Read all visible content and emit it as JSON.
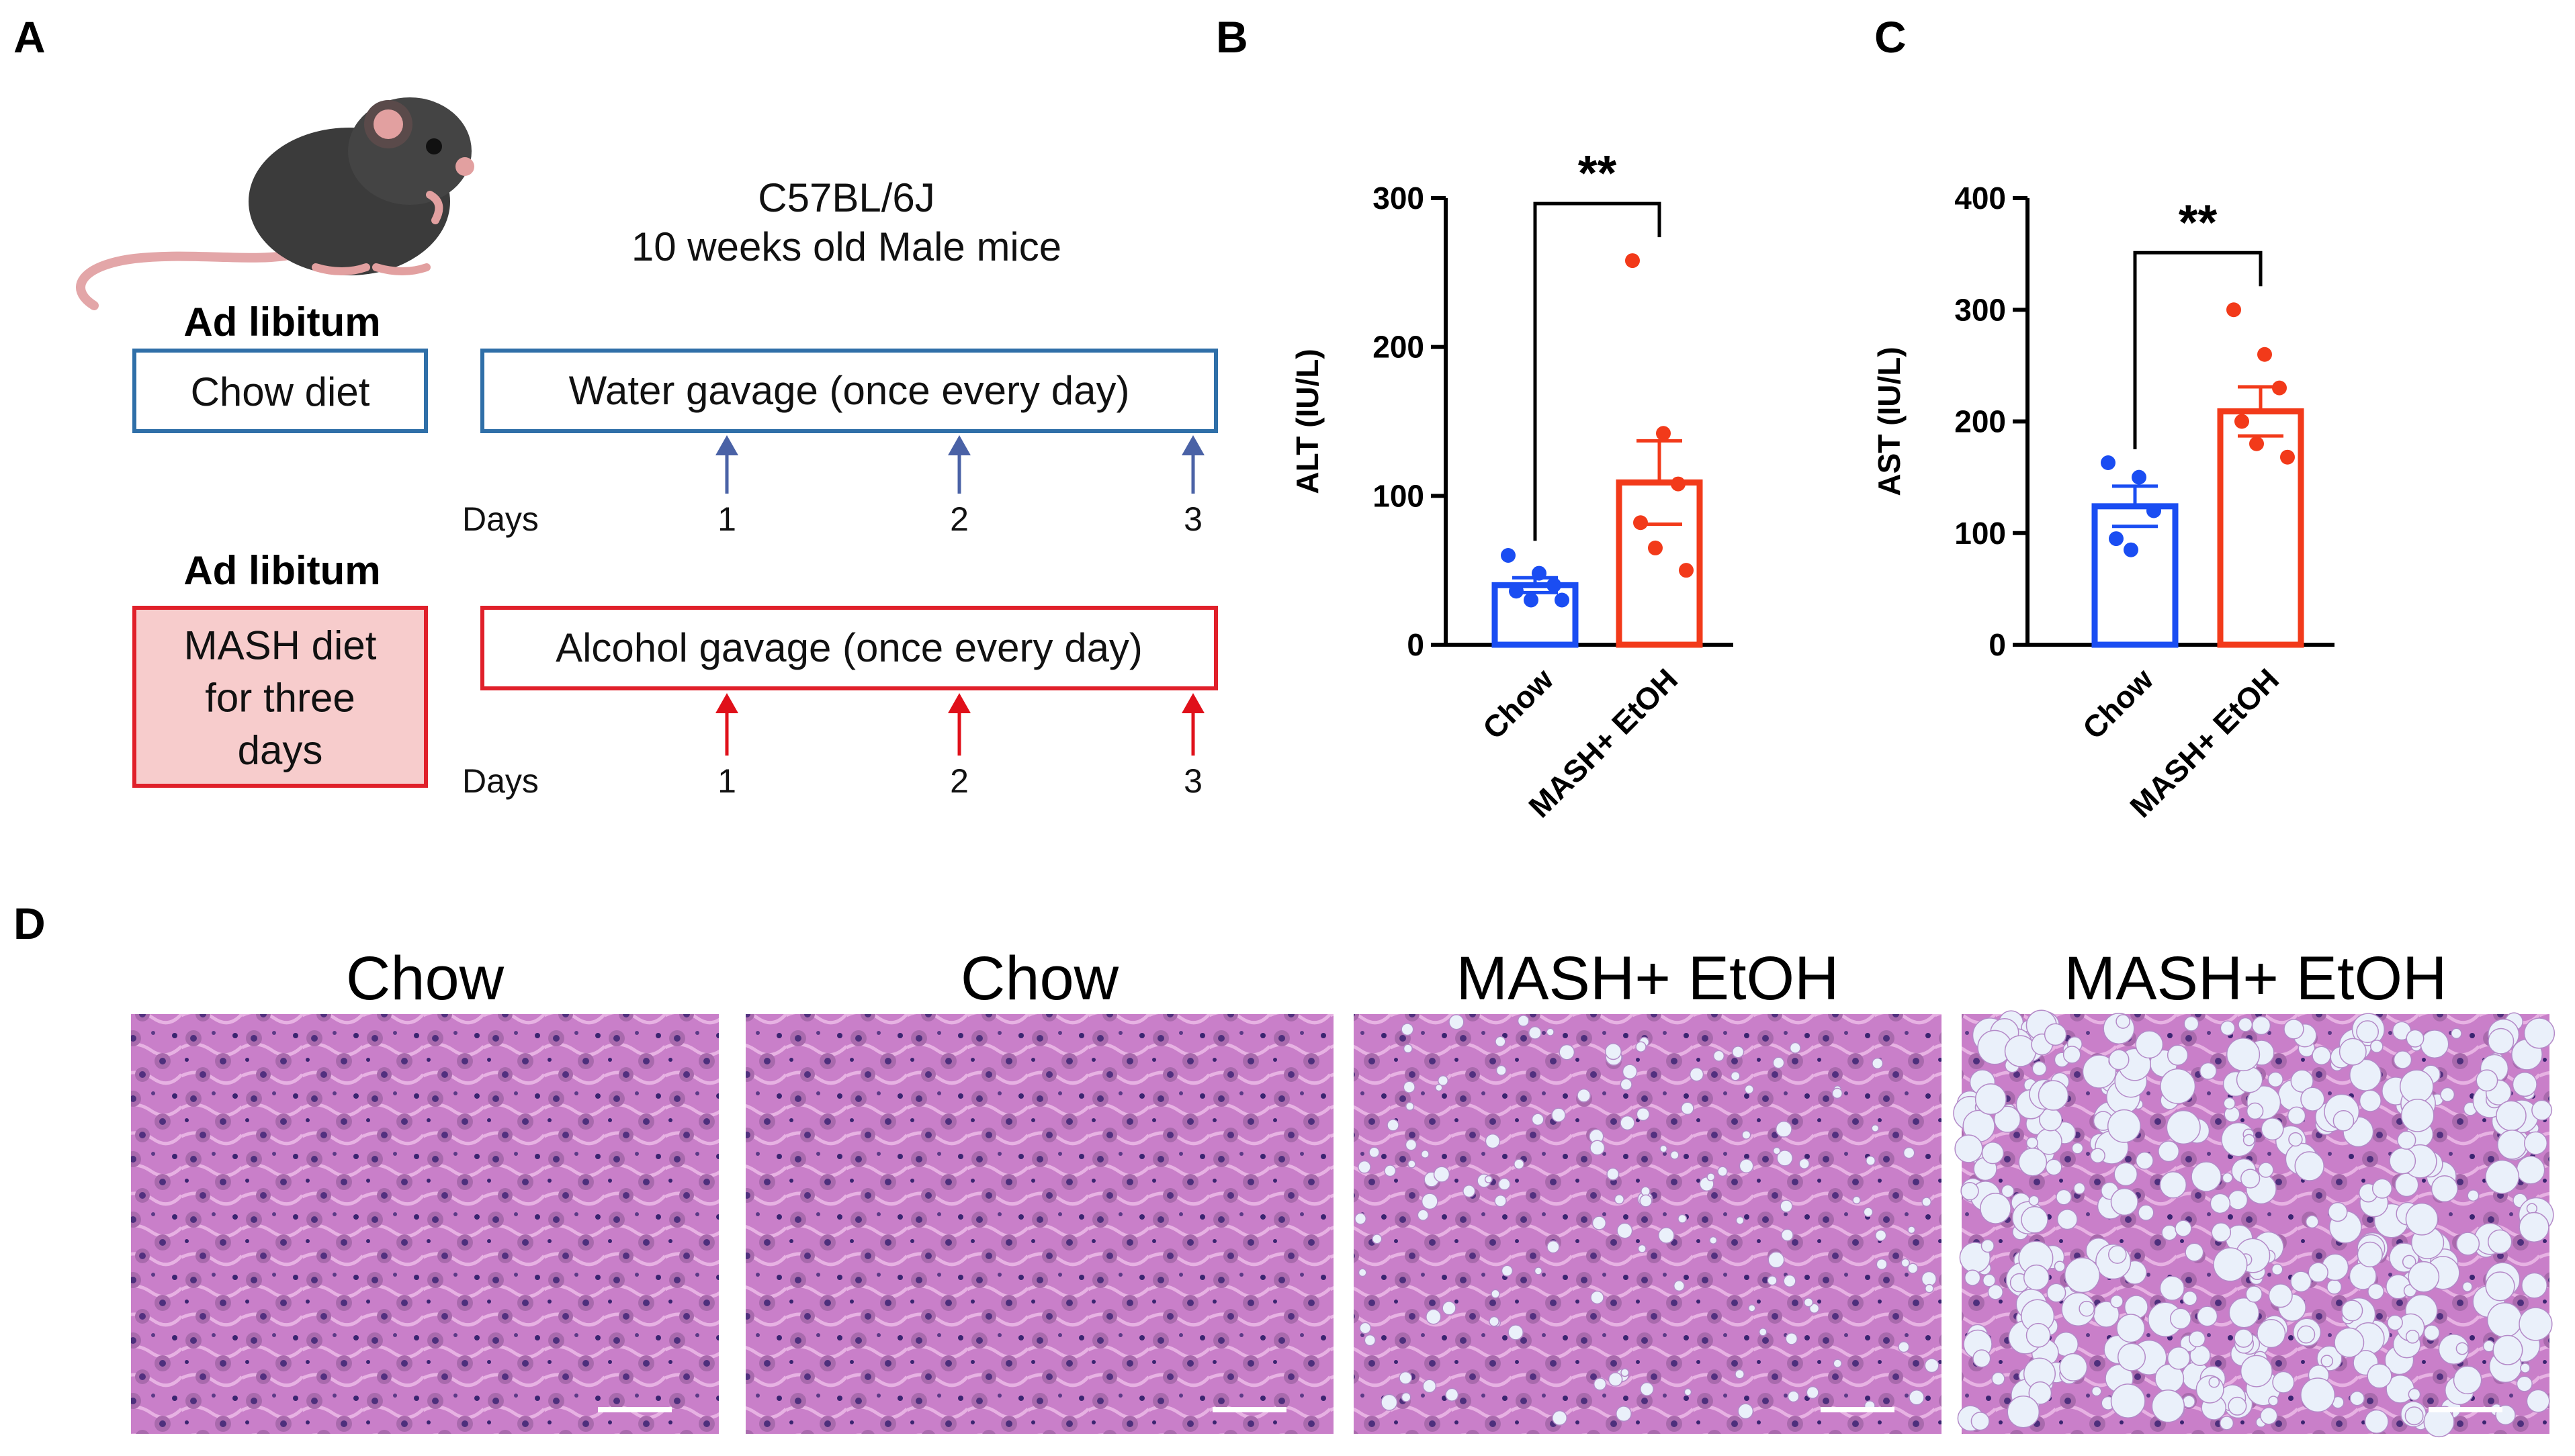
{
  "panels": {
    "a": {
      "letter": "A"
    },
    "b": {
      "letter": "B"
    },
    "c": {
      "letter": "C"
    },
    "d": {
      "letter": "D"
    }
  },
  "study": {
    "strain": "C57BL/6J",
    "cohort": "10 weeks old Male mice"
  },
  "groups": [
    {
      "feeding": "Ad libitum",
      "diet_lines": [
        "Chow diet"
      ],
      "gavage": "Water gavage (once every day)",
      "days_label": "Days",
      "days": [
        "1",
        "2",
        "3"
      ],
      "color": "#2f6fa8",
      "arrow_color": "#4a62a6",
      "box_fill": "#ffffff"
    },
    {
      "feeding": "Ad libitum",
      "diet_lines": [
        "MASH diet",
        "for three",
        "days"
      ],
      "gavage": "Alcohol gavage (once every day)",
      "days_label": "Days",
      "days": [
        "1",
        "2",
        "3"
      ],
      "color": "#e0202a",
      "arrow_color": "#e0101a",
      "box_fill": "#f7cccc"
    }
  ],
  "chart_data": [
    {
      "type": "bar",
      "panel": "B",
      "categories": [
        "Chow",
        "MASH+ EtOH"
      ],
      "values": [
        40,
        109
      ],
      "errors": [
        5,
        28
      ],
      "points": [
        [
          60,
          48,
          40,
          36,
          30,
          30
        ],
        [
          258,
          142,
          108,
          82,
          65,
          50
        ]
      ],
      "ylabel": "ALT (IU/L)",
      "ylim": [
        0,
        300
      ],
      "yticks": [
        "0",
        "100",
        "200",
        "300"
      ],
      "significance": "**",
      "colors": [
        "#1a4df2",
        "#f23a1a"
      ]
    },
    {
      "type": "bar",
      "panel": "C",
      "categories": [
        "Chow",
        "MASH+ EtOH"
      ],
      "values": [
        124,
        209
      ],
      "errors": [
        18,
        22
      ],
      "points": [
        [
          163,
          150,
          120,
          95,
          85
        ],
        [
          300,
          260,
          230,
          200,
          180,
          168
        ]
      ],
      "ylabel": "AST (IU/L)",
      "ylim": [
        0,
        400
      ],
      "yticks": [
        "0",
        "100",
        "200",
        "300",
        "400"
      ],
      "significance": "**",
      "colors": [
        "#1a4df2",
        "#f23a1a"
      ]
    }
  ],
  "histology": [
    {
      "title": "Chow",
      "fat": false
    },
    {
      "title": "Chow",
      "fat": false
    },
    {
      "title": "MASH+ EtOH",
      "fat": "mild"
    },
    {
      "title": "MASH+ EtOH",
      "fat": "heavy"
    }
  ]
}
